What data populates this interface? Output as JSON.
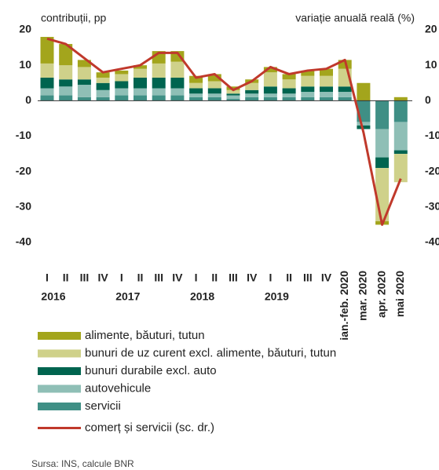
{
  "chart_data": {
    "type": "stacked_bar_line",
    "ylabel": "contribuții, pp",
    "y2label": "variație anuală reală (%)",
    "source": "Sursa: INS, calcule BNR",
    "categories": [
      "I",
      "II",
      "III",
      "IV",
      "I",
      "II",
      "III",
      "IV",
      "I",
      "II",
      "III",
      "IV",
      "I",
      "II",
      "III",
      "IV",
      "ian.-feb. 2020",
      "mar. 2020",
      "apr. 2020",
      "mai 2020"
    ],
    "groups": [
      "2016",
      "2017",
      "2018",
      "2019"
    ],
    "ylim": [
      -40,
      20
    ],
    "yticks": [
      -40,
      -30,
      -20,
      -10,
      0,
      10,
      20
    ],
    "y2lim": [
      -40,
      20
    ],
    "y2ticks": [
      -40,
      -30,
      -20,
      -10,
      0,
      10,
      20
    ],
    "series": [
      {
        "name": "alimente, băuturi, tutun",
        "color": "#a3a51c",
        "values": [
          7.5,
          6,
          2,
          1.5,
          1,
          1,
          3.5,
          3,
          2,
          2,
          1,
          1,
          1.5,
          1.5,
          1.5,
          2,
          2.5,
          5,
          -1,
          1
        ]
      },
      {
        "name": "bunuri de uz curent excl. alimente, băuturi, tutun",
        "color": "#cfd18a",
        "values": [
          4,
          4,
          3.5,
          1.5,
          2,
          2.5,
          4,
          4.5,
          1.5,
          2,
          1,
          2,
          4,
          2.5,
          3,
          3,
          5,
          0,
          -15,
          -8
        ]
      },
      {
        "name": "bunuri durabile excl. auto",
        "color": "#00644f",
        "values": [
          3,
          2,
          1.5,
          2,
          2,
          3,
          3,
          3,
          1.5,
          1.5,
          0.5,
          1,
          2,
          1.5,
          1.5,
          1.5,
          1.5,
          -1,
          -3,
          -1
        ]
      },
      {
        "name": "autovehicule",
        "color": "#8fbfb6",
        "values": [
          2,
          2.5,
          3.5,
          2,
          2,
          2,
          2,
          2,
          1,
          1,
          1,
          1,
          1,
          1,
          1.5,
          1.5,
          1.5,
          -1,
          -8,
          -8
        ]
      },
      {
        "name": "servicii",
        "color": "#3f8f85",
        "values": [
          1.5,
          1.5,
          1,
          1,
          1.5,
          1.5,
          1.5,
          1.5,
          1,
          1,
          0.5,
          1,
          1,
          1,
          1,
          1,
          1,
          -6,
          -8,
          -6
        ]
      },
      {
        "name": "comerț și servicii (sc. dr.)",
        "color": "#c0392b",
        "axis": "y2",
        "line": true,
        "values": [
          17.5,
          16,
          12,
          8,
          9,
          10,
          13.5,
          13.5,
          6.5,
          7.5,
          3,
          5.5,
          9.5,
          7.5,
          8.5,
          9,
          11.5,
          -9,
          -35,
          -22
        ]
      }
    ]
  }
}
